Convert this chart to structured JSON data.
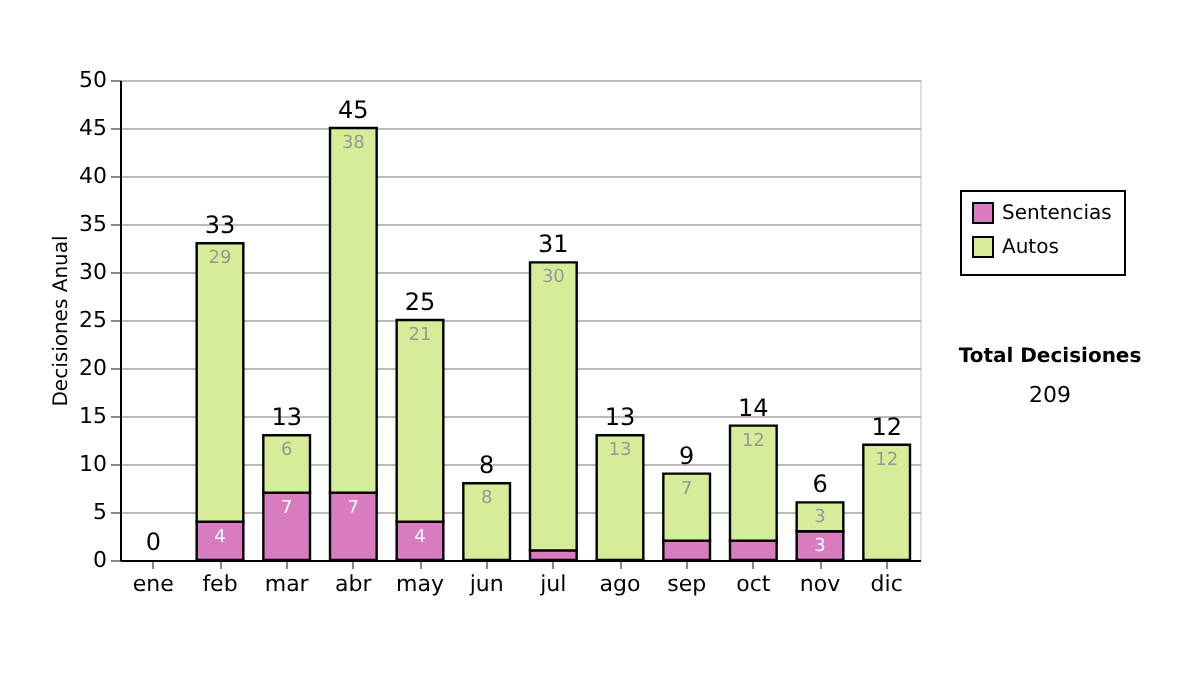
{
  "chart_data": {
    "type": "bar",
    "stacked": true,
    "ylabel": "Decisiones Anual",
    "categories": [
      "ene",
      "feb",
      "mar",
      "abr",
      "may",
      "jun",
      "jul",
      "ago",
      "sep",
      "oct",
      "nov",
      "dic"
    ],
    "series": [
      {
        "name": "Sentencias",
        "color": "#d97bbf",
        "values": [
          0,
          4,
          7,
          7,
          4,
          0,
          1,
          0,
          2,
          2,
          3,
          0
        ],
        "value_labels": [
          null,
          "4",
          "7",
          "7",
          "4",
          null,
          null,
          null,
          null,
          null,
          "3",
          null
        ]
      },
      {
        "name": "Autos",
        "color": "#d6ec98",
        "values": [
          0,
          29,
          6,
          38,
          21,
          8,
          30,
          13,
          7,
          12,
          3,
          12
        ],
        "value_labels": [
          null,
          "29",
          "6",
          "38",
          "21",
          "8",
          "30",
          "13",
          "7",
          "12",
          "3",
          "12"
        ]
      }
    ],
    "totals": [
      "0",
      "33",
      "13",
      "45",
      "25",
      "8",
      "31",
      "13",
      "9",
      "14",
      "6",
      "12"
    ],
    "ylim": [
      0,
      50
    ],
    "yticks": [
      0,
      5,
      10,
      15,
      20,
      25,
      30,
      35,
      40,
      45,
      50
    ],
    "grid": "y",
    "legend": "right",
    "annotations": [
      "Total Decisiones",
      "209"
    ]
  }
}
